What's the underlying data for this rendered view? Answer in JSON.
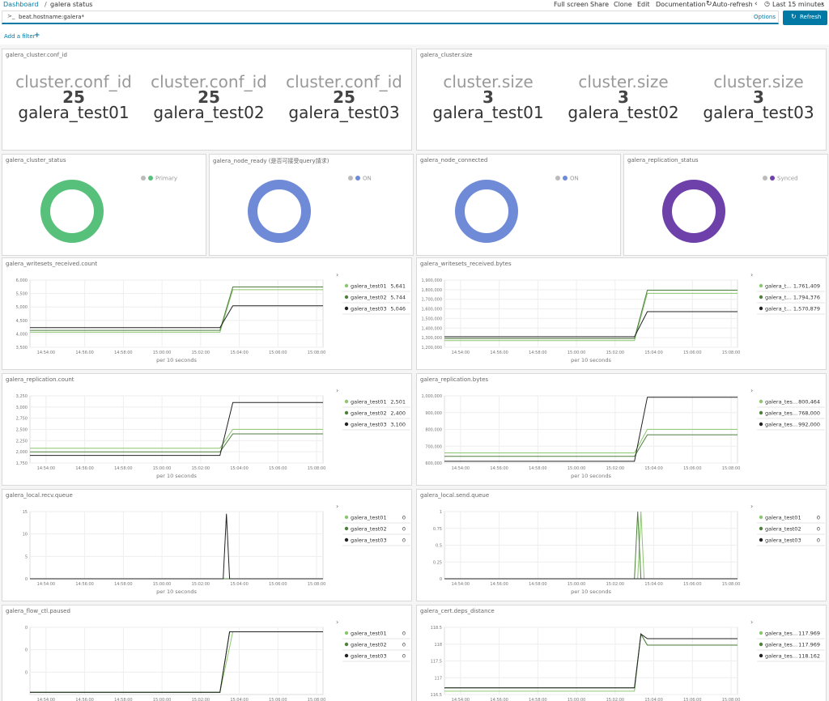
{
  "header": {
    "breadcrumb": [
      "Dashboard",
      "galera status"
    ],
    "menu": [
      "Full screen",
      "Share",
      "Clone",
      "Edit",
      "Documentation",
      "Auto-refresh",
      "Last 15 minutes"
    ],
    "query": "beat.hostname:galera*",
    "options": "Options",
    "refresh": "Refresh",
    "add_filter": "Add a filter"
  },
  "metric_panels": [
    {
      "title": "galera_cluster.conf_id",
      "items": [
        {
          "label": "cluster.conf_id",
          "value": 25,
          "name": "galera_test01"
        },
        {
          "label": "cluster.conf_id",
          "value": 25,
          "name": "galera_test02"
        },
        {
          "label": "cluster.conf_id",
          "value": 25,
          "name": "galera_test03"
        }
      ]
    },
    {
      "title": "galera_cluster.size",
      "items": [
        {
          "label": "cluster.size",
          "value": 3,
          "name": "galera_test01"
        },
        {
          "label": "cluster.size",
          "value": 3,
          "name": "galera_test02"
        },
        {
          "label": "cluster.size",
          "value": 3,
          "name": "galera_test03"
        }
      ]
    }
  ],
  "donut_panels": [
    {
      "title": "galera_cluster_status",
      "legend": "Primary",
      "color": "#57c17b"
    },
    {
      "title": "galera_node_ready (是否可接受query請求)",
      "legend": "ON",
      "color": "#6f8bd8"
    },
    {
      "title": "galera_node_connected",
      "legend": "ON",
      "color": "#6f8bd8"
    },
    {
      "title": "galera_replication_status",
      "legend": "Synced",
      "color": "#6e40aa"
    }
  ],
  "x_axis": {
    "label": "per 10 seconds",
    "xlim": [
      "14:53:10",
      "15:08:20"
    ],
    "xticks": [
      "14:54:00",
      "14:56:00",
      "14:58:00",
      "15:00:00",
      "15:02:00",
      "15:04:00",
      "15:06:00",
      "15:08:00"
    ]
  },
  "line_panels": [
    {
      "title": "galera_writesets_received.count",
      "ylim": [
        3500,
        6000
      ],
      "yticks": [
        {
          "value": 3500,
          "label": "3,500"
        },
        {
          "value": 4000,
          "label": "4,000"
        },
        {
          "value": 4500,
          "label": "4,500"
        },
        {
          "value": 5000,
          "label": "5,000"
        },
        {
          "value": 5500,
          "label": "5,500"
        },
        {
          "value": 6000,
          "label": "6,000"
        }
      ],
      "series": [
        {
          "name": "galera_test01",
          "color": "#8cc66f",
          "legend_value": "5,641",
          "x": [
            "14:53:10",
            "15:03:00",
            "15:03:40",
            "15:08:20"
          ],
          "values": [
            4060,
            4060,
            5641,
            5641
          ]
        },
        {
          "name": "galera_test02",
          "color": "#4f7f3c",
          "legend_value": "5,744",
          "x": [
            "14:53:10",
            "15:03:00",
            "15:03:40",
            "15:08:20"
          ],
          "values": [
            4130,
            4130,
            5744,
            5744
          ]
        },
        {
          "name": "galera_test03",
          "color": "#222222",
          "legend_value": "5,046",
          "x": [
            "14:53:10",
            "15:03:00",
            "15:03:40",
            "15:08:20"
          ],
          "values": [
            4230,
            4230,
            5046,
            5046
          ]
        }
      ]
    },
    {
      "title": "galera_writesets_received.bytes",
      "ylim": [
        1200000,
        1900000
      ],
      "yticks": [
        {
          "value": 1200000,
          "label": "1,200,000"
        },
        {
          "value": 1300000,
          "label": "1,300,000"
        },
        {
          "value": 1400000,
          "label": "1,400,000"
        },
        {
          "value": 1500000,
          "label": "1,500,000"
        },
        {
          "value": 1600000,
          "label": "1,600,000"
        },
        {
          "value": 1700000,
          "label": "1,700,000"
        },
        {
          "value": 1800000,
          "label": "1,800,000"
        },
        {
          "value": 1900000,
          "label": "1,900,000"
        }
      ],
      "series": [
        {
          "name": "galera_t…",
          "color": "#8cc66f",
          "legend_value": "1,761,409",
          "x": [
            "14:53:10",
            "15:03:00",
            "15:03:40",
            "15:08:20"
          ],
          "values": [
            1270000,
            1270000,
            1761409,
            1761409
          ]
        },
        {
          "name": "galera_t…",
          "color": "#4f7f3c",
          "legend_value": "1,794,376",
          "x": [
            "14:53:10",
            "15:03:00",
            "15:03:40",
            "15:08:20"
          ],
          "values": [
            1290000,
            1290000,
            1794376,
            1794376
          ]
        },
        {
          "name": "galera_t…",
          "color": "#222222",
          "legend_value": "1,570,879",
          "x": [
            "14:53:10",
            "15:03:00",
            "15:03:40",
            "15:08:20"
          ],
          "values": [
            1310000,
            1310000,
            1570879,
            1570879
          ]
        }
      ]
    },
    {
      "title": "galera_replication.count",
      "ylim": [
        1750,
        3250
      ],
      "yticks": [
        {
          "value": 1750,
          "label": "1,750"
        },
        {
          "value": 2000,
          "label": "2,000"
        },
        {
          "value": 2250,
          "label": "2,250"
        },
        {
          "value": 2500,
          "label": "2,500"
        },
        {
          "value": 2750,
          "label": "2,750"
        },
        {
          "value": 3000,
          "label": "3,000"
        },
        {
          "value": 3250,
          "label": "3,250"
        }
      ],
      "series": [
        {
          "name": "galera_test01",
          "color": "#8cc66f",
          "legend_value": "2,501",
          "x": [
            "14:53:10",
            "15:03:00",
            "15:03:40",
            "15:08:20"
          ],
          "values": [
            2080,
            2080,
            2501,
            2501
          ]
        },
        {
          "name": "galera_test02",
          "color": "#4f7f3c",
          "legend_value": "2,400",
          "x": [
            "14:53:10",
            "15:03:00",
            "15:03:40",
            "15:08:20"
          ],
          "values": [
            2000,
            2000,
            2400,
            2400
          ]
        },
        {
          "name": "galera_test03",
          "color": "#222222",
          "legend_value": "3,100",
          "x": [
            "14:53:10",
            "15:03:00",
            "15:03:40",
            "15:08:20"
          ],
          "values": [
            1920,
            1920,
            3100,
            3100
          ]
        }
      ]
    },
    {
      "title": "galera_replication.bytes",
      "ylim": [
        600000,
        1000000
      ],
      "yticks": [
        {
          "value": 600000,
          "label": "600,000"
        },
        {
          "value": 700000,
          "label": "700,000"
        },
        {
          "value": 800000,
          "label": "800,000"
        },
        {
          "value": 900000,
          "label": "900,000"
        },
        {
          "value": 1000000,
          "label": "1,000,000"
        }
      ],
      "series": [
        {
          "name": "galera_tes…",
          "color": "#8cc66f",
          "legend_value": "800,464",
          "x": [
            "14:53:10",
            "15:03:00",
            "15:03:40",
            "15:08:20"
          ],
          "values": [
            660000,
            660000,
            800464,
            800464
          ]
        },
        {
          "name": "galera_tes…",
          "color": "#4f7f3c",
          "legend_value": "768,000",
          "x": [
            "14:53:10",
            "15:03:00",
            "15:03:40",
            "15:08:20"
          ],
          "values": [
            640000,
            640000,
            768000,
            768000
          ]
        },
        {
          "name": "galera_tes…",
          "color": "#222222",
          "legend_value": "992,000",
          "x": [
            "14:53:10",
            "15:03:00",
            "15:03:40",
            "15:08:20"
          ],
          "values": [
            610000,
            610000,
            992000,
            992000
          ]
        }
      ]
    },
    {
      "title": "galera_local.recv.queue",
      "ylim": [
        0,
        15
      ],
      "yticks": [
        0,
        5,
        10,
        15
      ],
      "series": [
        {
          "name": "galera_test01",
          "color": "#8cc66f",
          "legend_value": "0",
          "x": [
            "14:53:10",
            "15:08:20"
          ],
          "values": [
            0,
            0
          ]
        },
        {
          "name": "galera_test02",
          "color": "#4f7f3c",
          "legend_value": "0",
          "x": [
            "14:53:10",
            "15:08:20"
          ],
          "values": [
            0,
            0
          ]
        },
        {
          "name": "galera_test03",
          "color": "#222222",
          "legend_value": "0",
          "x": [
            "14:53:10",
            "15:03:10",
            "15:03:20",
            "15:03:30",
            "15:08:20"
          ],
          "values": [
            0,
            0,
            14.5,
            0,
            0
          ]
        }
      ]
    },
    {
      "title": "galera_local.send.queue",
      "ylim": [
        0,
        1
      ],
      "yticks": [
        0,
        0.25,
        0.5,
        0.75,
        1
      ],
      "series": [
        {
          "name": "galera_test01",
          "color": "#8cc66f",
          "legend_value": "0",
          "x": [
            "14:53:10",
            "15:03:10",
            "15:03:20",
            "15:03:30",
            "15:08:20"
          ],
          "values": [
            0,
            0,
            1,
            0,
            0
          ]
        },
        {
          "name": "galera_test02",
          "color": "#4f7f3c",
          "legend_value": "0",
          "x": [
            "14:53:10",
            "15:03:00",
            "15:03:10",
            "15:03:20",
            "15:08:20"
          ],
          "values": [
            0,
            0,
            1,
            0,
            0
          ]
        },
        {
          "name": "galera_test03",
          "color": "#222222",
          "legend_value": "0",
          "x": [
            "14:53:10",
            "15:08:20"
          ],
          "values": [
            0,
            0
          ]
        }
      ]
    },
    {
      "title": "galera_flow_ctl.paused",
      "ylim": [
        0,
        0.03
      ],
      "yticks": [
        {
          "value": 0.01,
          "label": "0"
        },
        {
          "value": 0.02,
          "label": "0"
        },
        {
          "value": 0.03,
          "label": "0"
        }
      ],
      "series": [
        {
          "name": "galera_test01",
          "color": "#8cc66f",
          "legend_value": "0",
          "x": [
            "14:53:10",
            "15:03:00",
            "15:03:40",
            "15:08:20"
          ],
          "values": [
            0.001,
            0.001,
            0.028,
            0.028
          ]
        },
        {
          "name": "galera_test02",
          "color": "#4f7f3c",
          "legend_value": "0",
          "x": [
            "14:53:10",
            "15:03:00",
            "15:03:30",
            "15:08:20"
          ],
          "values": [
            0.001,
            0.001,
            0.028,
            0.028
          ]
        },
        {
          "name": "galera_test03",
          "color": "#222222",
          "legend_value": "0",
          "x": [
            "14:53:10",
            "15:03:00",
            "15:03:30",
            "15:08:20"
          ],
          "values": [
            0.001,
            0.001,
            0.028,
            0.028
          ]
        }
      ]
    },
    {
      "title": "galera_cert.deps_distance",
      "ylim": [
        116.5,
        118.5
      ],
      "yticks": [
        116.5,
        117,
        117.5,
        118,
        118.5
      ],
      "series": [
        {
          "name": "galera_tes…",
          "color": "#8cc66f",
          "legend_value": "117.969",
          "x": [
            "14:53:10",
            "15:03:00",
            "15:03:20",
            "15:03:40",
            "15:08:20"
          ],
          "values": [
            116.6,
            116.6,
            118.3,
            117.969,
            117.969
          ]
        },
        {
          "name": "galera_tes…",
          "color": "#4f7f3c",
          "legend_value": "117.969",
          "x": [
            "14:53:10",
            "15:03:00",
            "15:03:20",
            "15:03:40",
            "15:08:20"
          ],
          "values": [
            116.7,
            116.7,
            118.3,
            117.969,
            117.969
          ]
        },
        {
          "name": "galera_tes…",
          "color": "#222222",
          "legend_value": "118.162",
          "x": [
            "14:53:10",
            "15:03:00",
            "15:03:20",
            "15:03:40",
            "15:08:20"
          ],
          "values": [
            116.7,
            116.7,
            118.3,
            118.162,
            118.162
          ]
        }
      ]
    }
  ]
}
